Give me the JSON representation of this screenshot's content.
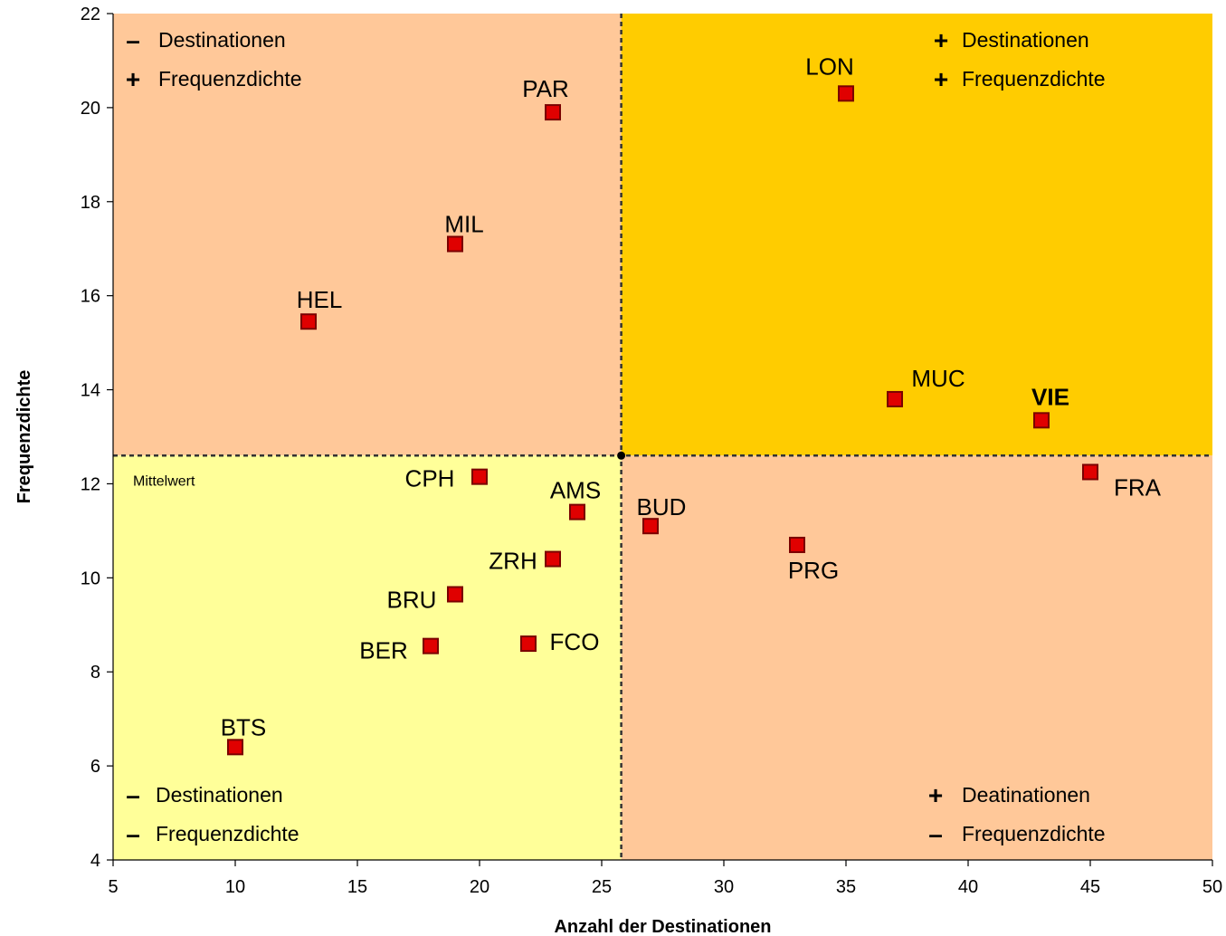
{
  "colors": {
    "quadrant_top_left": "#FFC899",
    "quadrant_top_right": "#FFCC00",
    "quadrant_bottom_left": "#FFFF99",
    "quadrant_bottom_right": "#FFC899",
    "marker_fill": "#E00000",
    "marker_stroke": "#7A0000",
    "mean_line": "#333333"
  },
  "chart_data": {
    "type": "scatter",
    "xlabel": "Anzahl der Destinationen",
    "ylabel": "Frequenzdichte",
    "xlim": [
      5,
      50
    ],
    "ylim": [
      4,
      22
    ],
    "x_ticks": [
      5,
      10,
      15,
      20,
      25,
      30,
      35,
      40,
      45,
      50
    ],
    "y_ticks": [
      4,
      6,
      8,
      10,
      12,
      14,
      16,
      18,
      20,
      22
    ],
    "mean": {
      "x": 25.8,
      "y": 12.6,
      "label": "Mittelwert"
    },
    "points": [
      {
        "label": "PAR",
        "x": 23,
        "y": 19.9
      },
      {
        "label": "LON",
        "x": 35,
        "y": 20.3
      },
      {
        "label": "MIL",
        "x": 19,
        "y": 17.1
      },
      {
        "label": "HEL",
        "x": 13,
        "y": 15.45
      },
      {
        "label": "MUC",
        "x": 37,
        "y": 13.8
      },
      {
        "label": "VIE",
        "x": 43,
        "y": 13.35,
        "bold": true
      },
      {
        "label": "FRA",
        "x": 45,
        "y": 12.25
      },
      {
        "label": "CPH",
        "x": 20,
        "y": 12.15
      },
      {
        "label": "AMS",
        "x": 24,
        "y": 11.4
      },
      {
        "label": "BUD",
        "x": 27,
        "y": 11.1
      },
      {
        "label": "PRG",
        "x": 33,
        "y": 10.7
      },
      {
        "label": "ZRH",
        "x": 23,
        "y": 10.4
      },
      {
        "label": "BRU",
        "x": 19,
        "y": 9.65
      },
      {
        "label": "BER",
        "x": 18,
        "y": 8.55
      },
      {
        "label": "FCO",
        "x": 22,
        "y": 8.6
      },
      {
        "label": "BTS",
        "x": 10,
        "y": 6.4
      }
    ],
    "quadrants": {
      "top_left": {
        "lines": [
          {
            "sign": "–",
            "text": "Destinationen"
          },
          {
            "sign": "+",
            "text": "Frequenzdichte"
          }
        ]
      },
      "top_right": {
        "lines": [
          {
            "sign": "+",
            "text": "Destinationen"
          },
          {
            "sign": "+",
            "text": "Frequenzdichte"
          }
        ]
      },
      "bottom_left": {
        "lines": [
          {
            "sign": "–",
            "text": "Destinationen"
          },
          {
            "sign": "–",
            "text": "Frequenzdichte"
          }
        ]
      },
      "bottom_right": {
        "lines": [
          {
            "sign": "+",
            "text": "Deatinationen"
          },
          {
            "sign": "–",
            "text": "Frequenzdichte"
          }
        ]
      }
    }
  }
}
